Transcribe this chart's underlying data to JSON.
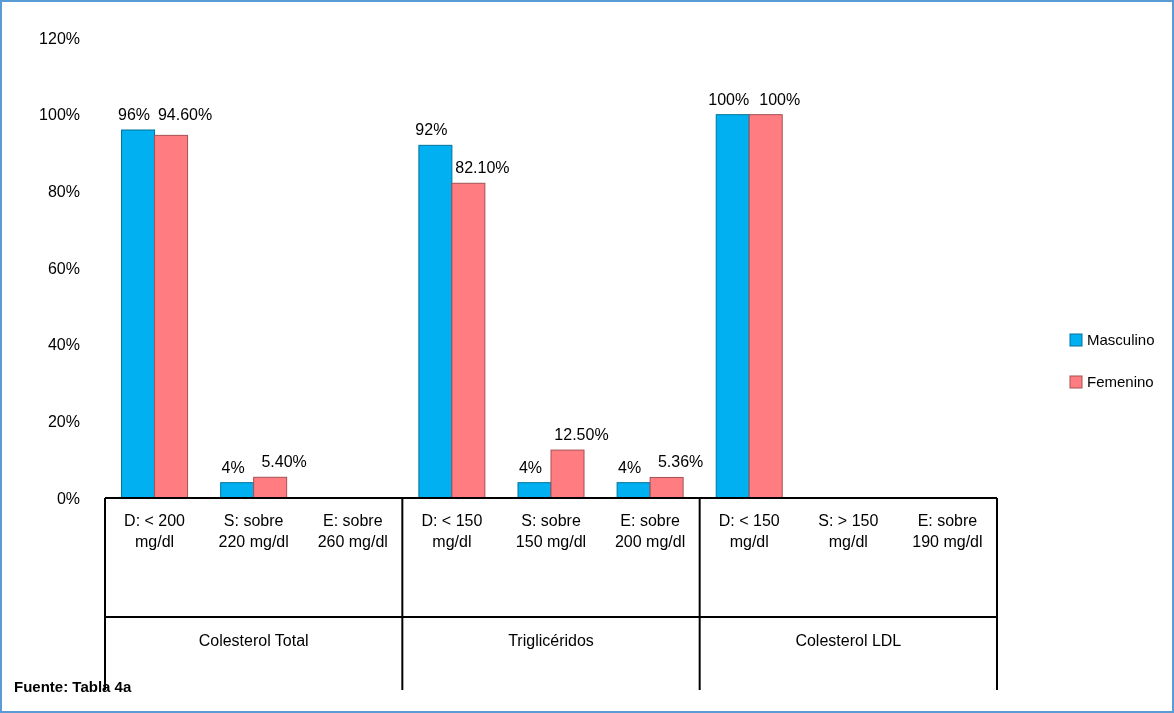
{
  "chart_data": {
    "type": "bar",
    "categories": [
      "D: < 200 mg/dl",
      "S: sobre 220 mg/dl",
      "E: sobre 260 mg/dl",
      "D: < 150 mg/dl",
      "S: sobre 150 mg/dl",
      "E: sobre 200 mg/dl",
      "D: < 150 mg/dl",
      "S: > 150 mg/dl",
      "E: sobre 190 mg/dl"
    ],
    "series": [
      {
        "name": "Masculino",
        "color": "#00b0f0",
        "values": [
          96,
          4,
          null,
          92,
          4,
          4,
          100,
          null,
          null
        ],
        "value_labels": [
          "96%",
          "4%",
          null,
          "92%",
          "4%",
          "4%",
          "100%",
          null,
          null
        ]
      },
      {
        "name": "Femenino",
        "color": "#ff7c80",
        "values": [
          94.6,
          5.4,
          null,
          82.1,
          12.5,
          5.36,
          100,
          null,
          null
        ],
        "value_labels": [
          "94.60%",
          "5.40%",
          null,
          "82.10%",
          "12.50%",
          "5.36%",
          "100%",
          null,
          null
        ]
      }
    ],
    "ylim": [
      0,
      120
    ],
    "yticks": [
      {
        "value": 0,
        "label": "0%"
      },
      {
        "value": 20,
        "label": "20%"
      },
      {
        "value": 40,
        "label": "40%"
      },
      {
        "value": 60,
        "label": "60%"
      },
      {
        "value": 80,
        "label": "80%"
      },
      {
        "value": 100,
        "label": "100%"
      },
      {
        "value": 120,
        "label": "120%"
      }
    ],
    "grid": false,
    "legend": "right",
    "annotations": [
      "Colesterol Total",
      "Triglicéridos",
      "Colesterol LDL",
      "Fuente: Tabla 4a"
    ]
  }
}
